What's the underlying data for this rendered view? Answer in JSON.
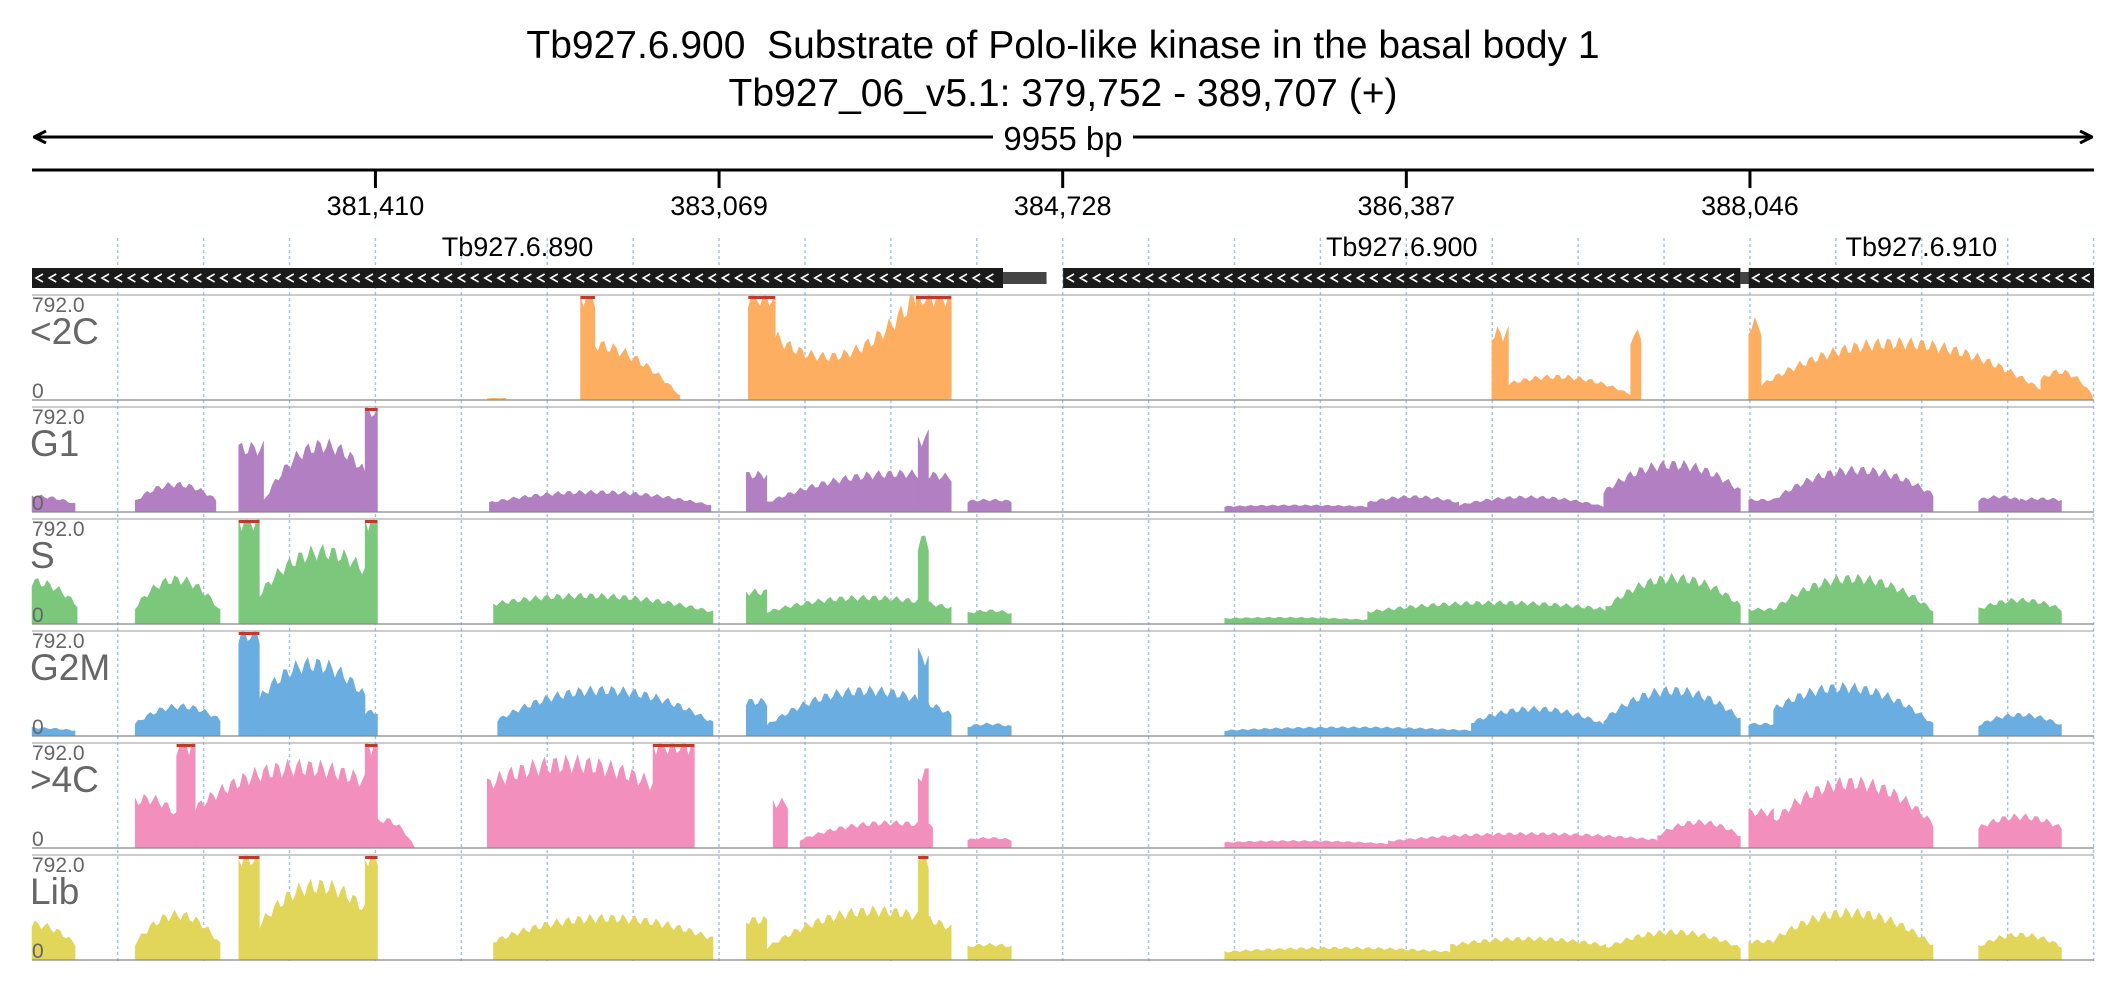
{
  "header": {
    "gene_id": "Tb927.6.900",
    "gene_description": "Substrate of Polo-like kinase in the basal body 1",
    "location": "Tb927_06_v5.1: 379,752 - 389,707 (+)"
  },
  "chart_data": {
    "type": "area",
    "region": {
      "chromosome": "Tb927_06_v5.1",
      "start": 379752,
      "end": 389707,
      "strand": "+",
      "length_label": "9955 bp"
    },
    "x_ticks": [
      {
        "value": 381410,
        "label": "381,410"
      },
      {
        "value": 383069,
        "label": "383,069"
      },
      {
        "value": 384728,
        "label": "384,728"
      },
      {
        "value": 386387,
        "label": "386,387"
      },
      {
        "value": 388046,
        "label": "388,046"
      }
    ],
    "genes": [
      {
        "name": "Tb927.6.890",
        "start": 379752,
        "end": 384440,
        "utr_end": 384650,
        "strand": "-"
      },
      {
        "name": "Tb927.6.900",
        "start": 384730,
        "end": 388000,
        "utr_end": 388070,
        "strand": "-"
      },
      {
        "name": "Tb927.6.910",
        "start": 388040,
        "end": 389707,
        "utr_end": 389707,
        "strand": "-"
      }
    ],
    "y_range": [
      0,
      792
    ],
    "y_max_label": "792.0",
    "y_min_label": "0",
    "series": [
      {
        "name": "<2C",
        "color": "#fdae61",
        "peaks": [
          [
            381950,
            382040,
            12,
            12,
            12
          ],
          [
            382400,
            382470,
            792,
            792,
            792
          ],
          [
            382470,
            382880,
            420,
            380,
            30
          ],
          [
            383210,
            383340,
            792,
            792,
            792
          ],
          [
            383340,
            384020,
            480,
            60,
            792
          ],
          [
            384020,
            384190,
            792,
            792,
            792
          ],
          [
            386800,
            386880,
            500,
            500,
            500
          ],
          [
            386880,
            387470,
            120,
            260,
            40
          ],
          [
            387470,
            387520,
            480,
            480,
            480
          ],
          [
            388040,
            388100,
            560,
            560,
            560
          ],
          [
            388040,
            389450,
            50,
            792,
            80
          ],
          [
            389450,
            389700,
            150,
            320,
            30
          ]
        ]
      },
      {
        "name": "G1",
        "color": "#b27fc2",
        "peaks": [
          [
            379752,
            379960,
            120,
            120,
            60
          ],
          [
            380250,
            380640,
            80,
            330,
            90
          ],
          [
            380750,
            380870,
            480,
            480,
            480
          ],
          [
            380870,
            381360,
            80,
            792,
            300
          ],
          [
            381360,
            381420,
            792,
            792,
            792
          ],
          [
            381960,
            383030,
            70,
            240,
            50
          ],
          [
            383200,
            383300,
            280,
            280,
            280
          ],
          [
            383300,
            384190,
            70,
            370,
            260
          ],
          [
            384030,
            384080,
            560,
            560,
            560
          ],
          [
            384270,
            384480,
            80,
            100,
            80
          ],
          [
            385510,
            386200,
            40,
            60,
            40
          ],
          [
            386200,
            386640,
            70,
            160,
            70
          ],
          [
            386640,
            387340,
            50,
            180,
            40
          ],
          [
            387340,
            388000,
            150,
            560,
            160
          ],
          [
            388040,
            388160,
            90,
            90,
            90
          ],
          [
            388160,
            388930,
            90,
            520,
            130
          ],
          [
            389150,
            389350,
            90,
            140,
            90
          ],
          [
            389350,
            389550,
            90,
            110,
            90
          ]
        ]
      },
      {
        "name": "S",
        "color": "#7bc87c",
        "peaks": [
          [
            379752,
            379970,
            320,
            320,
            140
          ],
          [
            380250,
            380660,
            120,
            560,
            100
          ],
          [
            380750,
            380850,
            792,
            792,
            792
          ],
          [
            380850,
            381360,
            220,
            760,
            400
          ],
          [
            381360,
            381420,
            792,
            792,
            792
          ],
          [
            381980,
            383040,
            150,
            300,
            90
          ],
          [
            383200,
            383300,
            240,
            240,
            240
          ],
          [
            383300,
            384190,
            90,
            290,
            120
          ],
          [
            384030,
            384080,
            620,
            620,
            620
          ],
          [
            384270,
            384480,
            80,
            120,
            80
          ],
          [
            385510,
            386200,
            40,
            60,
            30
          ],
          [
            386200,
            387350,
            90,
            220,
            110
          ],
          [
            387350,
            388000,
            120,
            560,
            140
          ],
          [
            388040,
            388160,
            110,
            110,
            110
          ],
          [
            388160,
            388930,
            110,
            580,
            100
          ],
          [
            389150,
            389550,
            110,
            250,
            110
          ]
        ]
      },
      {
        "name": "G2M",
        "color": "#6aade0",
        "peaks": [
          [
            379752,
            379960,
            60,
            60,
            40
          ],
          [
            380250,
            380660,
            90,
            340,
            120
          ],
          [
            380750,
            380850,
            792,
            792,
            792
          ],
          [
            380850,
            381360,
            280,
            792,
            300
          ],
          [
            381360,
            381420,
            180,
            180,
            180
          ],
          [
            382000,
            383040,
            120,
            580,
            100
          ],
          [
            383200,
            383300,
            260,
            260,
            260
          ],
          [
            383300,
            384190,
            80,
            560,
            160
          ],
          [
            384030,
            384080,
            600,
            600,
            600
          ],
          [
            384270,
            384480,
            70,
            110,
            70
          ],
          [
            385510,
            386700,
            40,
            90,
            40
          ],
          [
            386700,
            387350,
            100,
            320,
            80
          ],
          [
            387340,
            388000,
            120,
            560,
            130
          ],
          [
            388040,
            388160,
            90,
            90,
            90
          ],
          [
            388160,
            388930,
            200,
            580,
            90
          ],
          [
            389150,
            389550,
            80,
            240,
            80
          ]
        ]
      },
      {
        "name": ">4C",
        "color": "#f28fbc",
        "peaks": [
          [
            380250,
            380450,
            350,
            420,
            250
          ],
          [
            380450,
            380540,
            792,
            792,
            792
          ],
          [
            380540,
            381360,
            300,
            792,
            500
          ],
          [
            381360,
            381420,
            792,
            792,
            792
          ],
          [
            381420,
            381600,
            200,
            260,
            0
          ],
          [
            381950,
            382750,
            480,
            792,
            480
          ],
          [
            382750,
            382950,
            792,
            792,
            792
          ],
          [
            383330,
            383400,
            340,
            340,
            340
          ],
          [
            383460,
            384100,
            60,
            250,
            160
          ],
          [
            384030,
            384080,
            560,
            560,
            560
          ],
          [
            384270,
            384480,
            60,
            90,
            60
          ],
          [
            385510,
            386300,
            40,
            70,
            30
          ],
          [
            386300,
            387600,
            50,
            160,
            60
          ],
          [
            387600,
            388000,
            90,
            300,
            90
          ],
          [
            388040,
            388160,
            270,
            270,
            270
          ],
          [
            388160,
            388930,
            200,
            792,
            180
          ],
          [
            389150,
            389550,
            150,
            320,
            150
          ]
        ]
      },
      {
        "name": "Lib",
        "color": "#e1d65a",
        "peaks": [
          [
            379752,
            379960,
            270,
            270,
            120
          ],
          [
            380250,
            380660,
            120,
            560,
            120
          ],
          [
            380750,
            380850,
            792,
            792,
            792
          ],
          [
            380850,
            381360,
            260,
            792,
            380
          ],
          [
            381360,
            381420,
            792,
            792,
            792
          ],
          [
            381980,
            383040,
            140,
            480,
            160
          ],
          [
            383200,
            383300,
            300,
            300,
            300
          ],
          [
            383300,
            384190,
            90,
            560,
            240
          ],
          [
            384030,
            384080,
            792,
            792,
            792
          ],
          [
            384270,
            384480,
            100,
            130,
            100
          ],
          [
            385510,
            386600,
            60,
            120,
            60
          ],
          [
            386600,
            387350,
            110,
            210,
            110
          ],
          [
            387350,
            388000,
            90,
            330,
            90
          ],
          [
            388040,
            388160,
            140,
            140,
            140
          ],
          [
            388160,
            388930,
            150,
            580,
            110
          ],
          [
            389150,
            389550,
            100,
            280,
            100
          ]
        ]
      }
    ]
  }
}
